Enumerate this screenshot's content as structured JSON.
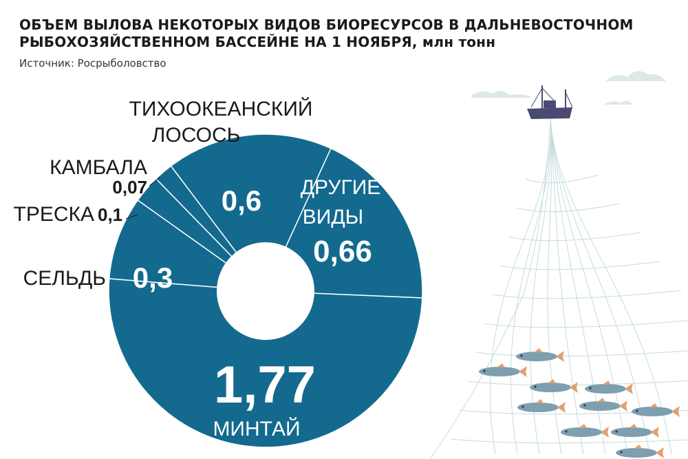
{
  "header": {
    "title": "ОБЪЕМ ВЫЛОВА НЕКОТОРЫХ ВИДОВ БИОРЕСУРСОВ В ДАЛЬНЕВОСТОЧНОМ РЫБОХОЗЯЙСТВЕННОМ БАССЕЙНЕ НА 1 НОЯБРЯ, млн тонн",
    "source": "Источник: Росрыболовство"
  },
  "chart_data": {
    "type": "pie",
    "donut": true,
    "title": "ОБЪЕМ ВЫЛОВА НЕКОТОРЫХ ВИДОВ БИОРЕСУРСОВ В ДАЛЬНЕВОСТОЧНОМ РЫБОХОЗЯЙСТВЕННОМ БАССЕЙНЕ НА 1 НОЯБРЯ",
    "unit": "млн тонн",
    "slices": [
      {
        "name": "МИНТАЙ",
        "value": 1.77,
        "label": "1,77"
      },
      {
        "name": "СЕЛЬДЬ",
        "value": 0.3,
        "label": "0,3"
      },
      {
        "name": "ТРЕСКА",
        "value": 0.1,
        "label": "0,1"
      },
      {
        "name": "КАМБАЛА",
        "value": 0.07,
        "label": "0,07"
      },
      {
        "name": "ТИХООКЕАНСКИЙ ЛОСОСЬ",
        "value": 0.6,
        "label": "0,6"
      },
      {
        "name": "ДРУГИЕ ВИДЫ",
        "value": 0.66,
        "label": "0,66"
      }
    ],
    "colors": {
      "slice": "#136a8e",
      "separator": "#ffffff",
      "text": "#1a1a1a"
    }
  },
  "labels": {
    "pollock_value": "1,77",
    "pollock_name": "МИНТАЙ",
    "herring_value": "0,3",
    "herring_name": "СЕЛЬДЬ",
    "cod_value": "0,1",
    "cod_name": "ТРЕСКА",
    "flounder_value": "0,07",
    "flounder_name": "КАМБАЛА",
    "salmon_value": "0,6",
    "salmon_name_1": "ТИХООКЕАНСКИЙ",
    "salmon_name_2": "ЛОСОСЬ",
    "other_value": "0,66",
    "other_name_1": "ДРУГИЕ",
    "other_name_2": "ВИДЫ"
  },
  "illustration": {
    "ship_color": "#4a4a72",
    "cloud_color": "#dce9e6",
    "net_color": "#c4dcdb",
    "fish_color": "#7d9fb0",
    "fin_color": "#e0a070"
  }
}
